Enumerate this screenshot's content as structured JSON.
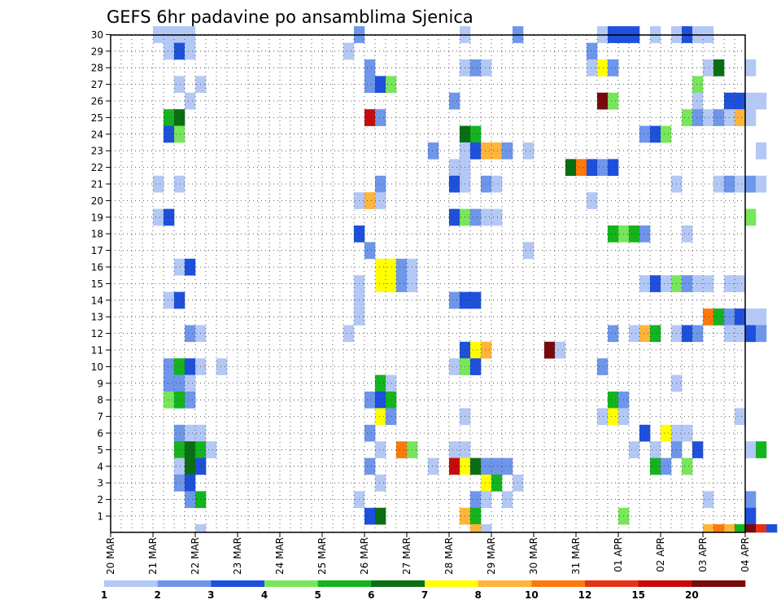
{
  "chart_data": {
    "type": "heatmap",
    "title": "GEFS 6hr padavine po ansamblima Sjenica",
    "y_ticks": [
      "1",
      "2",
      "3",
      "4",
      "5",
      "6",
      "7",
      "8",
      "9",
      "10",
      "11",
      "12",
      "13",
      "14",
      "15",
      "16",
      "17",
      "18",
      "19",
      "20",
      "21",
      "22",
      "23",
      "24",
      "25",
      "26",
      "27",
      "28",
      "29",
      "30"
    ],
    "x_ticks": [
      "20 MAR",
      "21 MAR",
      "22 MAR",
      "23 MAR",
      "24 MAR",
      "25 MAR",
      "26 MAR",
      "27 MAR",
      "28 MAR",
      "29 MAR",
      "30 MAR",
      "31 MAR",
      "01 APR",
      "02 APR",
      "03 APR",
      "04 APR"
    ],
    "time_steps_per_day": 4,
    "members": 30,
    "legend": {
      "labels": [
        "1",
        "2",
        "3",
        "4",
        "5",
        "6",
        "7",
        "8",
        "10",
        "12",
        "15",
        "20"
      ],
      "colors": [
        "#b4c8f5",
        "#6e96ea",
        "#1e50dc",
        "#78e65a",
        "#14b41e",
        "#0a6e14",
        "#ffff00",
        "#ffb43c",
        "#ff780a",
        "#e63214",
        "#c80a0a",
        "#780a0a"
      ]
    },
    "cells": [
      {
        "member": 30,
        "t": [
          [
            4,
            1
          ],
          [
            5,
            1
          ],
          [
            6,
            1
          ],
          [
            7,
            1
          ],
          [
            23,
            2
          ],
          [
            33,
            1
          ],
          [
            38,
            2
          ],
          [
            46,
            1
          ],
          [
            47,
            3
          ],
          [
            48,
            3
          ],
          [
            49,
            3
          ],
          [
            51,
            1
          ],
          [
            53,
            1
          ],
          [
            54,
            3
          ],
          [
            55,
            1
          ],
          [
            56,
            1
          ]
        ]
      },
      {
        "member": 29,
        "t": [
          [
            5,
            1
          ],
          [
            6,
            3
          ],
          [
            7,
            1
          ],
          [
            22,
            1
          ],
          [
            45,
            2
          ]
        ]
      },
      {
        "member": 28,
        "t": [
          [
            24,
            2
          ],
          [
            33,
            1
          ],
          [
            34,
            2
          ],
          [
            35,
            1
          ],
          [
            45,
            1
          ],
          [
            46,
            7
          ],
          [
            47,
            2
          ],
          [
            56,
            1
          ],
          [
            57,
            6
          ],
          [
            60,
            1
          ]
        ]
      },
      {
        "member": 27,
        "t": [
          [
            6,
            1
          ],
          [
            8,
            1
          ],
          [
            24,
            2
          ],
          [
            25,
            3
          ],
          [
            26,
            4
          ],
          [
            55,
            4
          ]
        ]
      },
      {
        "member": 26,
        "t": [
          [
            7,
            1
          ],
          [
            32,
            2
          ],
          [
            46,
            12
          ],
          [
            47,
            4
          ],
          [
            55,
            1
          ],
          [
            58,
            3
          ],
          [
            59,
            3
          ],
          [
            60,
            1
          ],
          [
            61,
            1
          ]
        ]
      },
      {
        "member": 25,
        "t": [
          [
            5,
            5
          ],
          [
            6,
            6
          ],
          [
            24,
            11
          ],
          [
            25,
            2
          ],
          [
            54,
            4
          ],
          [
            55,
            2
          ],
          [
            56,
            1
          ],
          [
            57,
            2
          ],
          [
            58,
            1
          ],
          [
            59,
            8
          ],
          [
            60,
            1
          ]
        ]
      },
      {
        "member": 24,
        "t": [
          [
            5,
            3
          ],
          [
            6,
            4
          ],
          [
            33,
            6
          ],
          [
            34,
            5
          ],
          [
            50,
            2
          ],
          [
            51,
            3
          ],
          [
            52,
            4
          ]
        ]
      },
      {
        "member": 23,
        "t": [
          [
            30,
            2
          ],
          [
            33,
            1
          ],
          [
            34,
            3
          ],
          [
            35,
            8
          ],
          [
            36,
            8
          ],
          [
            37,
            2
          ],
          [
            39,
            1
          ],
          [
            61,
            1
          ]
        ]
      },
      {
        "member": 22,
        "t": [
          [
            32,
            1
          ],
          [
            33,
            1
          ],
          [
            43,
            6
          ],
          [
            44,
            9
          ],
          [
            45,
            3
          ],
          [
            46,
            2
          ],
          [
            47,
            3
          ]
        ]
      },
      {
        "member": 21,
        "t": [
          [
            4,
            1
          ],
          [
            6,
            1
          ],
          [
            25,
            2
          ],
          [
            32,
            3
          ],
          [
            33,
            1
          ],
          [
            35,
            2
          ],
          [
            36,
            1
          ],
          [
            53,
            1
          ],
          [
            57,
            1
          ],
          [
            58,
            2
          ],
          [
            59,
            1
          ],
          [
            60,
            2
          ],
          [
            61,
            1
          ]
        ]
      },
      {
        "member": 20,
        "t": [
          [
            23,
            1
          ],
          [
            24,
            8
          ],
          [
            25,
            1
          ],
          [
            45,
            1
          ]
        ]
      },
      {
        "member": 19,
        "t": [
          [
            4,
            1
          ],
          [
            5,
            3
          ],
          [
            32,
            3
          ],
          [
            33,
            4
          ],
          [
            34,
            2
          ],
          [
            35,
            1
          ],
          [
            36,
            1
          ],
          [
            60,
            4
          ]
        ]
      },
      {
        "member": 18,
        "t": [
          [
            23,
            3
          ],
          [
            47,
            5
          ],
          [
            48,
            4
          ],
          [
            49,
            5
          ],
          [
            50,
            2
          ],
          [
            54,
            1
          ]
        ]
      },
      {
        "member": 17,
        "t": [
          [
            24,
            2
          ],
          [
            39,
            1
          ]
        ]
      },
      {
        "member": 16,
        "t": [
          [
            6,
            1
          ],
          [
            7,
            3
          ],
          [
            25,
            7
          ],
          [
            26,
            7
          ],
          [
            27,
            2
          ],
          [
            28,
            1
          ]
        ]
      },
      {
        "member": 15,
        "t": [
          [
            23,
            1
          ],
          [
            25,
            7
          ],
          [
            26,
            7
          ],
          [
            27,
            2
          ],
          [
            28,
            1
          ],
          [
            50,
            1
          ],
          [
            51,
            3
          ],
          [
            52,
            1
          ],
          [
            53,
            4
          ],
          [
            54,
            2
          ],
          [
            55,
            1
          ],
          [
            56,
            1
          ],
          [
            58,
            1
          ],
          [
            59,
            1
          ]
        ]
      },
      {
        "member": 14,
        "t": [
          [
            5,
            1
          ],
          [
            6,
            3
          ],
          [
            23,
            1
          ],
          [
            32,
            2
          ],
          [
            33,
            3
          ],
          [
            34,
            3
          ]
        ]
      },
      {
        "member": 13,
        "t": [
          [
            23,
            1
          ],
          [
            56,
            9
          ],
          [
            57,
            5
          ],
          [
            58,
            2
          ],
          [
            59,
            3
          ],
          [
            60,
            1
          ],
          [
            61,
            1
          ]
        ]
      },
      {
        "member": 12,
        "t": [
          [
            7,
            2
          ],
          [
            8,
            1
          ],
          [
            22,
            1
          ],
          [
            47,
            2
          ],
          [
            49,
            1
          ],
          [
            50,
            8
          ],
          [
            51,
            5
          ],
          [
            53,
            1
          ],
          [
            54,
            3
          ],
          [
            55,
            2
          ],
          [
            58,
            1
          ],
          [
            59,
            1
          ],
          [
            60,
            3
          ],
          [
            61,
            2
          ]
        ]
      },
      {
        "member": 11,
        "t": [
          [
            33,
            3
          ],
          [
            34,
            7
          ],
          [
            35,
            8
          ],
          [
            41,
            12
          ],
          [
            42,
            1
          ]
        ]
      },
      {
        "member": 10,
        "t": [
          [
            5,
            2
          ],
          [
            6,
            5
          ],
          [
            7,
            3
          ],
          [
            8,
            1
          ],
          [
            10,
            1
          ],
          [
            32,
            1
          ],
          [
            33,
            4
          ],
          [
            34,
            3
          ],
          [
            46,
            2
          ]
        ]
      },
      {
        "member": 9,
        "t": [
          [
            5,
            2
          ],
          [
            6,
            2
          ],
          [
            7,
            1
          ],
          [
            25,
            5
          ],
          [
            26,
            1
          ],
          [
            53,
            1
          ]
        ]
      },
      {
        "member": 8,
        "t": [
          [
            5,
            4
          ],
          [
            6,
            5
          ],
          [
            7,
            2
          ],
          [
            24,
            2
          ],
          [
            25,
            3
          ],
          [
            26,
            5
          ],
          [
            47,
            5
          ],
          [
            48,
            2
          ]
        ]
      },
      {
        "member": 7,
        "t": [
          [
            25,
            7
          ],
          [
            26,
            2
          ],
          [
            33,
            1
          ],
          [
            46,
            1
          ],
          [
            47,
            7
          ],
          [
            48,
            1
          ],
          [
            59,
            1
          ]
        ]
      },
      {
        "member": 6,
        "t": [
          [
            6,
            2
          ],
          [
            7,
            1
          ],
          [
            8,
            1
          ],
          [
            24,
            2
          ],
          [
            50,
            3
          ],
          [
            52,
            7
          ],
          [
            53,
            1
          ],
          [
            54,
            1
          ]
        ]
      },
      {
        "member": 5,
        "t": [
          [
            6,
            5
          ],
          [
            7,
            6
          ],
          [
            8,
            5
          ],
          [
            9,
            1
          ],
          [
            25,
            1
          ],
          [
            27,
            9
          ],
          [
            28,
            4
          ],
          [
            32,
            1
          ],
          [
            33,
            1
          ],
          [
            49,
            1
          ],
          [
            51,
            1
          ],
          [
            53,
            2
          ],
          [
            55,
            3
          ],
          [
            60,
            1
          ],
          [
            61,
            5
          ]
        ]
      },
      {
        "member": 4,
        "t": [
          [
            6,
            1
          ],
          [
            7,
            6
          ],
          [
            8,
            3
          ],
          [
            24,
            2
          ],
          [
            30,
            1
          ],
          [
            32,
            11
          ],
          [
            33,
            7
          ],
          [
            34,
            6
          ],
          [
            35,
            2
          ],
          [
            36,
            2
          ],
          [
            37,
            2
          ],
          [
            51,
            5
          ],
          [
            52,
            2
          ],
          [
            54,
            4
          ]
        ]
      },
      {
        "member": 3,
        "t": [
          [
            6,
            2
          ],
          [
            7,
            3
          ],
          [
            25,
            1
          ],
          [
            35,
            7
          ],
          [
            36,
            5
          ],
          [
            38,
            1
          ]
        ]
      },
      {
        "member": 2,
        "t": [
          [
            7,
            2
          ],
          [
            8,
            5
          ],
          [
            23,
            1
          ],
          [
            34,
            2
          ],
          [
            35,
            1
          ],
          [
            37,
            1
          ],
          [
            56,
            1
          ],
          [
            60,
            2
          ]
        ]
      },
      {
        "member": 1,
        "t": [
          [
            24,
            3
          ],
          [
            25,
            6
          ],
          [
            33,
            8
          ],
          [
            34,
            5
          ],
          [
            48,
            4
          ],
          [
            60,
            3
          ]
        ]
      },
      {
        "member": 0,
        "t": [
          [
            8,
            1
          ],
          [
            34,
            8
          ],
          [
            35,
            1
          ],
          [
            56,
            8
          ],
          [
            57,
            9
          ],
          [
            58,
            8
          ],
          [
            59,
            5
          ],
          [
            60,
            12
          ],
          [
            61,
            10
          ],
          [
            62,
            3
          ]
        ]
      }
    ]
  }
}
